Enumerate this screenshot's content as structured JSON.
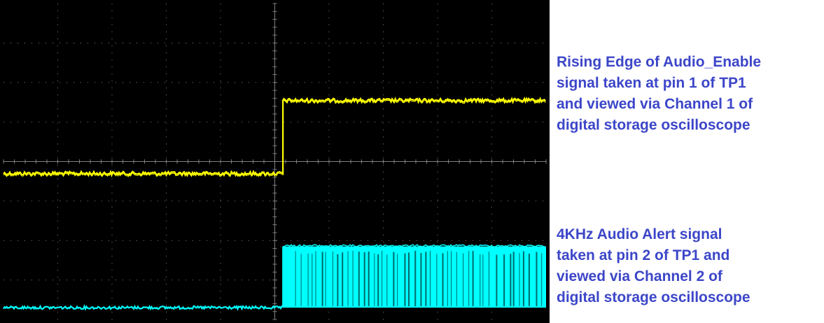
{
  "chart_data": {
    "type": "line",
    "title": "",
    "xlabel": "",
    "ylabel": "",
    "grid": true,
    "grid_divisions": {
      "x": 10,
      "y": 8
    },
    "x_range_div": [
      0,
      10
    ],
    "y_range_div": [
      -4,
      4
    ],
    "series": [
      {
        "name": "Channel 1",
        "color": "#ffff00",
        "shape": "step",
        "x_div": [
          0,
          5.15,
          5.15,
          10
        ],
        "y_div": [
          -0.3,
          -0.3,
          1.55,
          1.55
        ]
      },
      {
        "name": "Channel 2",
        "color": "#00ffff",
        "shape": "burst",
        "burst_start_div": 5.15,
        "low_div": -3.7,
        "high_div": -2.15
      }
    ],
    "background_color": "#000000",
    "grid_color": "#808080"
  },
  "captions": [
    {
      "lines": [
        "Rising Edge of Audio_Enable",
        "signal taken at pin 1 of TP1",
        "and viewed via Channel 1 of",
        "digital storage oscilloscope"
      ]
    },
    {
      "lines": [
        "4KHz Audio Alert signal",
        "taken at pin 2 of TP1 and",
        "viewed  via Channel 2 of",
        "digital storage oscilloscope"
      ]
    }
  ],
  "caption_color": "#3c46c8"
}
